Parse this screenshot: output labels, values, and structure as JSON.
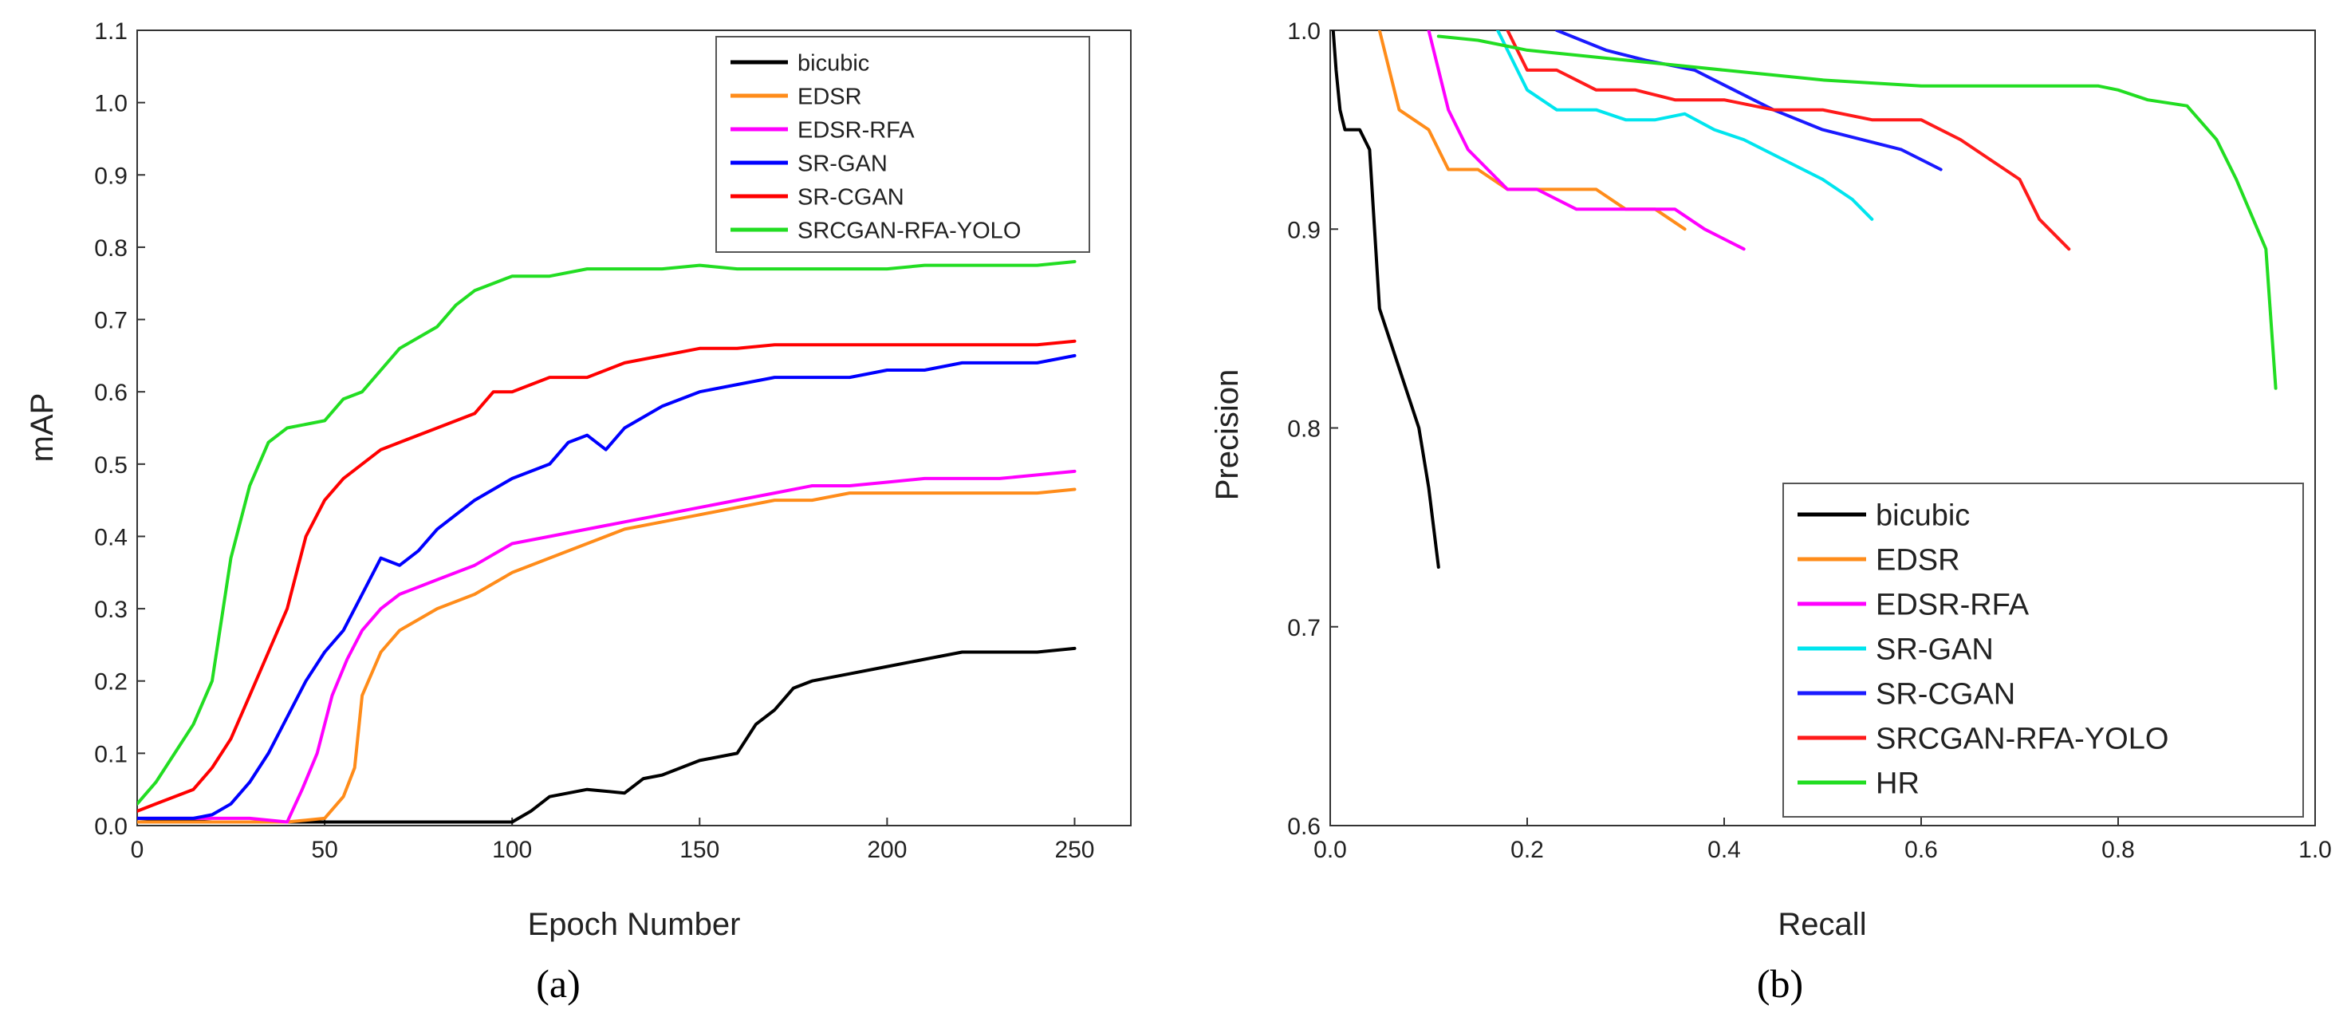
{
  "chart_data": [
    {
      "id": "a",
      "type": "line",
      "caption": "(a)",
      "xlabel": "Epoch Number",
      "ylabel": "mAP",
      "xlim": [
        0,
        265
      ],
      "ylim": [
        0,
        1.1
      ],
      "xticks": [
        0,
        50,
        100,
        150,
        200,
        250
      ],
      "xtick_labels": [
        "0",
        "50",
        "100",
        "150",
        "200",
        "250"
      ],
      "yticks": [
        0,
        0.1,
        0.2,
        0.3,
        0.4,
        0.5,
        0.6,
        0.7,
        0.8,
        0.9,
        1.0,
        1.1
      ],
      "ytick_labels": [
        "0.0",
        "0.1",
        "0.2",
        "0.3",
        "0.4",
        "0.5",
        "0.6",
        "0.7",
        "0.8",
        "0.9",
        "1.0",
        "1.1"
      ],
      "legend": "top-right",
      "series": [
        {
          "name": "bicubic",
          "color": "#000000",
          "x": [
            0,
            20,
            40,
            60,
            80,
            95,
            100,
            105,
            110,
            120,
            130,
            135,
            140,
            150,
            160,
            165,
            170,
            175,
            180,
            190,
            200,
            210,
            220,
            230,
            240,
            250
          ],
          "y": [
            0.01,
            0.005,
            0.005,
            0.005,
            0.005,
            0.005,
            0.005,
            0.02,
            0.04,
            0.05,
            0.045,
            0.065,
            0.07,
            0.09,
            0.1,
            0.14,
            0.16,
            0.19,
            0.2,
            0.21,
            0.22,
            0.23,
            0.24,
            0.24,
            0.24,
            0.245
          ]
        },
        {
          "name": "EDSR",
          "color": "#ff8c1a",
          "x": [
            0,
            40,
            50,
            55,
            58,
            60,
            65,
            70,
            80,
            90,
            100,
            110,
            120,
            130,
            140,
            150,
            160,
            170,
            180,
            190,
            200,
            210,
            220,
            230,
            240,
            250
          ],
          "y": [
            0.005,
            0.005,
            0.01,
            0.04,
            0.08,
            0.18,
            0.24,
            0.27,
            0.3,
            0.32,
            0.35,
            0.37,
            0.39,
            0.41,
            0.42,
            0.43,
            0.44,
            0.45,
            0.45,
            0.46,
            0.46,
            0.46,
            0.46,
            0.46,
            0.46,
            0.465
          ]
        },
        {
          "name": "EDSR-RFA",
          "color": "#ff00ff",
          "x": [
            0,
            30,
            40,
            44,
            48,
            52,
            56,
            60,
            65,
            70,
            80,
            90,
            100,
            110,
            120,
            130,
            140,
            150,
            160,
            170,
            180,
            190,
            200,
            210,
            220,
            230,
            240,
            250
          ],
          "y": [
            0.01,
            0.01,
            0.005,
            0.05,
            0.1,
            0.18,
            0.23,
            0.27,
            0.3,
            0.32,
            0.34,
            0.36,
            0.39,
            0.4,
            0.41,
            0.42,
            0.43,
            0.44,
            0.45,
            0.46,
            0.47,
            0.47,
            0.475,
            0.48,
            0.48,
            0.48,
            0.485,
            0.49
          ]
        },
        {
          "name": "SR-GAN",
          "color": "#0000ff",
          "x": [
            0,
            15,
            20,
            25,
            30,
            35,
            40,
            45,
            50,
            55,
            60,
            65,
            70,
            75,
            80,
            90,
            100,
            110,
            115,
            120,
            125,
            130,
            140,
            150,
            160,
            170,
            180,
            190,
            200,
            210,
            220,
            230,
            240,
            250
          ],
          "y": [
            0.01,
            0.01,
            0.015,
            0.03,
            0.06,
            0.1,
            0.15,
            0.2,
            0.24,
            0.27,
            0.32,
            0.37,
            0.36,
            0.38,
            0.41,
            0.45,
            0.48,
            0.5,
            0.53,
            0.54,
            0.52,
            0.55,
            0.58,
            0.6,
            0.61,
            0.62,
            0.62,
            0.62,
            0.63,
            0.63,
            0.64,
            0.64,
            0.64,
            0.65
          ]
        },
        {
          "name": "SR-CGAN",
          "color": "#ff0000",
          "x": [
            0,
            5,
            10,
            15,
            20,
            25,
            30,
            35,
            40,
            45,
            50,
            55,
            60,
            65,
            70,
            80,
            90,
            95,
            100,
            110,
            120,
            130,
            140,
            150,
            160,
            170,
            180,
            190,
            200,
            210,
            220,
            230,
            240,
            250
          ],
          "y": [
            0.02,
            0.03,
            0.04,
            0.05,
            0.08,
            0.12,
            0.18,
            0.24,
            0.3,
            0.4,
            0.45,
            0.48,
            0.5,
            0.52,
            0.53,
            0.55,
            0.57,
            0.6,
            0.6,
            0.62,
            0.62,
            0.64,
            0.65,
            0.66,
            0.66,
            0.665,
            0.665,
            0.665,
            0.665,
            0.665,
            0.665,
            0.665,
            0.665,
            0.67
          ]
        },
        {
          "name": "SRCGAN-RFA-YOLO",
          "color": "#22dd22",
          "x": [
            0,
            5,
            10,
            15,
            20,
            25,
            30,
            35,
            40,
            50,
            55,
            60,
            65,
            70,
            80,
            85,
            90,
            95,
            100,
            110,
            120,
            130,
            140,
            150,
            160,
            170,
            180,
            190,
            200,
            210,
            220,
            230,
            240,
            250
          ],
          "y": [
            0.03,
            0.06,
            0.1,
            0.14,
            0.2,
            0.37,
            0.47,
            0.53,
            0.55,
            0.56,
            0.59,
            0.6,
            0.63,
            0.66,
            0.69,
            0.72,
            0.74,
            0.75,
            0.76,
            0.76,
            0.77,
            0.77,
            0.77,
            0.775,
            0.77,
            0.77,
            0.77,
            0.77,
            0.77,
            0.775,
            0.775,
            0.775,
            0.775,
            0.78
          ]
        }
      ]
    },
    {
      "id": "b",
      "type": "line",
      "caption": "(b)",
      "xlabel": "Recall",
      "ylabel": "Precision",
      "xlim": [
        0,
        1.0
      ],
      "ylim": [
        0.6,
        1.0
      ],
      "xticks": [
        0,
        0.2,
        0.4,
        0.6,
        0.8,
        1.0
      ],
      "xtick_labels": [
        "0.0",
        "0.2",
        "0.4",
        "0.6",
        "0.8",
        "1.0"
      ],
      "yticks": [
        0.6,
        0.7,
        0.8,
        0.9,
        1.0
      ],
      "ytick_labels": [
        "0.6",
        "0.7",
        "0.8",
        "0.9",
        "1.0"
      ],
      "legend": "bottom-right",
      "series": [
        {
          "name": "bicubic",
          "color": "#000000",
          "x": [
            0.003,
            0.006,
            0.01,
            0.015,
            0.02,
            0.03,
            0.04,
            0.05,
            0.07,
            0.09,
            0.1,
            0.11
          ],
          "y": [
            1.0,
            0.98,
            0.96,
            0.95,
            0.95,
            0.95,
            0.94,
            0.86,
            0.83,
            0.8,
            0.77,
            0.73
          ]
        },
        {
          "name": "EDSR",
          "color": "#ff8c1a",
          "x": [
            0.05,
            0.07,
            0.1,
            0.12,
            0.15,
            0.18,
            0.21,
            0.24,
            0.27,
            0.3,
            0.33,
            0.36
          ],
          "y": [
            1.0,
            0.96,
            0.95,
            0.93,
            0.93,
            0.92,
            0.92,
            0.92,
            0.92,
            0.91,
            0.91,
            0.9
          ]
        },
        {
          "name": "EDSR-RFA",
          "color": "#ff00ff",
          "x": [
            0.1,
            0.12,
            0.14,
            0.16,
            0.18,
            0.21,
            0.25,
            0.28,
            0.31,
            0.35,
            0.38,
            0.42
          ],
          "y": [
            1.0,
            0.96,
            0.94,
            0.93,
            0.92,
            0.92,
            0.91,
            0.91,
            0.91,
            0.91,
            0.9,
            0.89
          ]
        },
        {
          "name": "SR-GAN",
          "color": "#00e5ee",
          "x": [
            0.17,
            0.2,
            0.23,
            0.27,
            0.3,
            0.33,
            0.36,
            0.39,
            0.42,
            0.46,
            0.5,
            0.53,
            0.55
          ],
          "y": [
            1.0,
            0.97,
            0.96,
            0.96,
            0.955,
            0.955,
            0.958,
            0.95,
            0.945,
            0.935,
            0.925,
            0.915,
            0.905
          ]
        },
        {
          "name": "SR-CGAN",
          "color": "#1a1aff",
          "x": [
            0.23,
            0.28,
            0.32,
            0.37,
            0.41,
            0.45,
            0.5,
            0.54,
            0.58,
            0.62
          ],
          "y": [
            1.0,
            0.99,
            0.985,
            0.98,
            0.97,
            0.96,
            0.95,
            0.945,
            0.94,
            0.93
          ]
        },
        {
          "name": "SRCGAN-RFA-YOLO",
          "color": "#ff1a1a",
          "x": [
            0.18,
            0.2,
            0.23,
            0.27,
            0.31,
            0.35,
            0.4,
            0.45,
            0.5,
            0.55,
            0.6,
            0.64,
            0.67,
            0.7,
            0.72,
            0.75
          ],
          "y": [
            1.0,
            0.98,
            0.98,
            0.97,
            0.97,
            0.965,
            0.965,
            0.96,
            0.96,
            0.955,
            0.955,
            0.945,
            0.935,
            0.925,
            0.905,
            0.89
          ]
        },
        {
          "name": "HR",
          "color": "#22dd22",
          "x": [
            0.11,
            0.15,
            0.2,
            0.3,
            0.4,
            0.5,
            0.6,
            0.7,
            0.78,
            0.8,
            0.83,
            0.87,
            0.9,
            0.92,
            0.95,
            0.96
          ],
          "y": [
            0.997,
            0.995,
            0.99,
            0.985,
            0.98,
            0.975,
            0.972,
            0.972,
            0.972,
            0.97,
            0.965,
            0.962,
            0.945,
            0.925,
            0.89,
            0.82
          ]
        }
      ]
    }
  ]
}
